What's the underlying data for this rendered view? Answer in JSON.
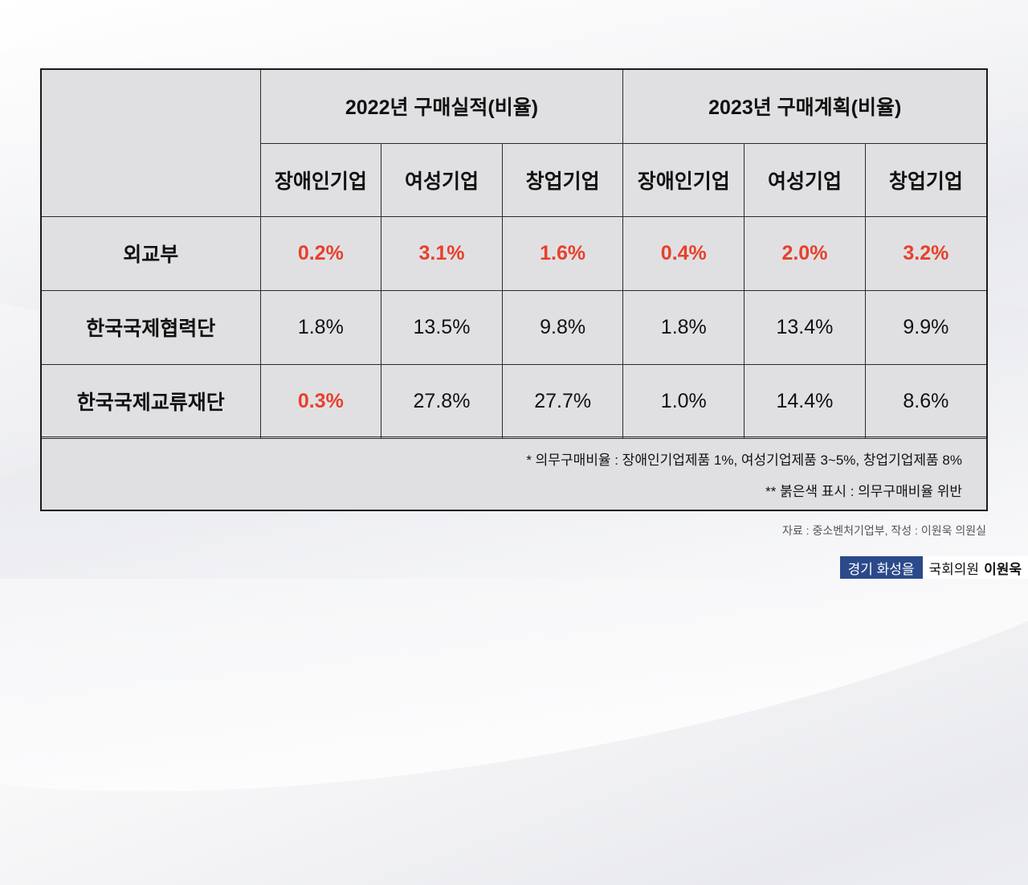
{
  "table": {
    "group_headers": [
      "2022년 구매실적(비율)",
      "2023년 구매계획(비율)"
    ],
    "sub_headers": [
      "장애인기업",
      "여성기업",
      "창업기업",
      "장애인기업",
      "여성기업",
      "창업기업"
    ],
    "rows": [
      {
        "org": "외교부",
        "values": [
          "0.2%",
          "3.1%",
          "1.6%",
          "0.4%",
          "2.0%",
          "3.2%"
        ],
        "red": [
          true,
          true,
          true,
          true,
          true,
          true
        ]
      },
      {
        "org": "한국국제협력단",
        "values": [
          "1.8%",
          "13.5%",
          "9.8%",
          "1.8%",
          "13.4%",
          "9.9%"
        ],
        "red": [
          false,
          false,
          false,
          false,
          false,
          false
        ]
      },
      {
        "org": "한국국제교류재단",
        "values": [
          "0.3%",
          "27.8%",
          "27.7%",
          "1.0%",
          "14.4%",
          "8.6%"
        ],
        "red": [
          true,
          false,
          false,
          false,
          false,
          false
        ]
      }
    ],
    "note1": "* 의무구매비율 : 장애인기업제품 1%, 여성기업제품 3~5%, 창업기업제품 8%",
    "note2": "** 붉은색 표시 : 의무구매비율 위반"
  },
  "source": "자료 : 중소벤처기업부, 작성 : 이원욱 의원실",
  "footer": {
    "district": "경기 화성을",
    "title": "국회의원",
    "name": "이원욱"
  },
  "colors": {
    "violation": "#e8402a",
    "table_bg": "#e0e0e3",
    "footer_blue": "#2b4a8a"
  }
}
